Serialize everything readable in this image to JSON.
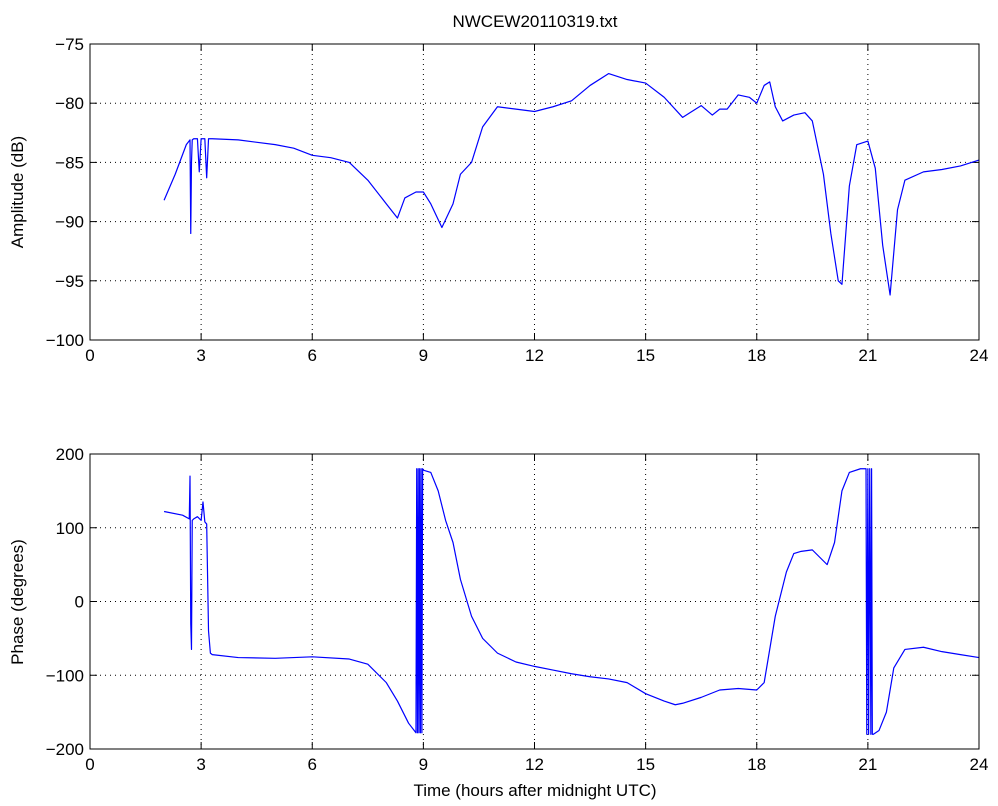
{
  "chart_data": [
    {
      "type": "line",
      "title": "NWCEW20110319.txt",
      "xlabel": "",
      "ylabel": "Amplitude (dB)",
      "xlim": [
        0,
        24
      ],
      "ylim": [
        -100,
        -75
      ],
      "xticks": [
        0,
        3,
        6,
        9,
        12,
        15,
        18,
        21,
        24
      ],
      "yticks": [
        -100,
        -95,
        -90,
        -85,
        -80,
        -75
      ],
      "xtick_labels": [
        "0",
        "3",
        "6",
        "9",
        "12",
        "15",
        "18",
        "21",
        "24"
      ],
      "ytick_labels": [
        "−100",
        "−95",
        "−90",
        "−85",
        "−80",
        "−75"
      ],
      "grid": true,
      "series_color": "#0000ff",
      "series": [
        {
          "x": [
            2.0,
            2.3,
            2.6,
            2.7,
            2.72,
            2.74,
            2.76,
            2.8,
            2.9,
            2.95,
            3.0,
            3.05,
            3.1,
            3.15,
            3.2,
            3.25,
            3.3,
            4.0,
            5.0,
            5.5,
            6.0,
            6.5,
            7.0,
            7.5,
            8.0,
            8.3,
            8.5,
            8.8,
            9.0,
            9.2,
            9.5,
            9.8,
            10.0,
            10.3,
            10.6,
            11.0,
            11.5,
            12.0,
            12.5,
            13.0,
            13.5,
            14.0,
            14.5,
            15.0,
            15.5,
            16.0,
            16.2,
            16.5,
            16.8,
            17.0,
            17.2,
            17.5,
            17.8,
            18.0,
            18.2,
            18.35,
            18.5,
            18.7,
            19.0,
            19.3,
            19.5,
            19.8,
            20.0,
            20.2,
            20.3,
            20.5,
            20.7,
            21.0,
            21.2,
            21.4,
            21.6,
            21.8,
            22.0,
            22.5,
            23.0,
            23.5,
            24.0
          ],
          "y": [
            -88.2,
            -86.0,
            -83.5,
            -83.1,
            -91.0,
            -85.0,
            -83.1,
            -83.0,
            -83.0,
            -85.8,
            -83.0,
            -83.0,
            -83.0,
            -86.3,
            -83.0,
            -83.0,
            -83.0,
            -83.1,
            -83.5,
            -83.8,
            -84.4,
            -84.6,
            -85.0,
            -86.5,
            -88.5,
            -89.7,
            -88.0,
            -87.5,
            -87.5,
            -88.5,
            -90.5,
            -88.5,
            -86.0,
            -85.0,
            -82.0,
            -80.3,
            -80.5,
            -80.7,
            -80.3,
            -79.8,
            -78.5,
            -77.5,
            -78.0,
            -78.3,
            -79.5,
            -81.2,
            -80.8,
            -80.2,
            -81.0,
            -80.5,
            -80.5,
            -79.3,
            -79.5,
            -80.0,
            -78.5,
            -78.2,
            -80.3,
            -81.5,
            -81.0,
            -80.8,
            -81.5,
            -86.0,
            -91.0,
            -95.0,
            -95.3,
            -87.0,
            -83.5,
            -83.2,
            -85.5,
            -92.0,
            -96.2,
            -89.0,
            -86.5,
            -85.8,
            -85.6,
            -85.3,
            -84.8
          ]
        }
      ]
    },
    {
      "type": "line",
      "title": "",
      "xlabel": "Time (hours after midnight UTC)",
      "ylabel": "Phase (degrees)",
      "xlim": [
        0,
        24
      ],
      "ylim": [
        -200,
        200
      ],
      "xticks": [
        0,
        3,
        6,
        9,
        12,
        15,
        18,
        21,
        24
      ],
      "yticks": [
        -200,
        -100,
        0,
        100,
        200
      ],
      "xtick_labels": [
        "0",
        "3",
        "6",
        "9",
        "12",
        "15",
        "18",
        "21",
        "24"
      ],
      "ytick_labels": [
        "−200",
        "−100",
        "0",
        "100",
        "200"
      ],
      "grid": true,
      "series_color": "#0000ff",
      "series": [
        {
          "x": [
            2.0,
            2.5,
            2.68,
            2.7,
            2.72,
            2.74,
            2.76,
            2.8,
            2.9,
            3.0,
            3.05,
            3.1,
            3.15,
            3.2,
            3.25,
            3.3,
            4.0,
            5.0,
            6.0,
            7.0,
            7.5,
            8.0,
            8.3,
            8.6,
            8.8,
            8.82,
            8.84,
            8.86,
            8.88,
            8.9,
            8.92,
            8.94,
            8.96,
            8.98,
            9.0,
            9.2,
            9.4,
            9.6,
            9.8,
            10.0,
            10.3,
            10.6,
            11.0,
            11.5,
            12.0,
            12.5,
            13.0,
            13.5,
            14.0,
            14.5,
            15.0,
            15.5,
            15.8,
            16.0,
            16.5,
            17.0,
            17.5,
            18.0,
            18.2,
            18.5,
            18.8,
            19.0,
            19.2,
            19.5,
            19.7,
            19.9,
            20.1,
            20.3,
            20.5,
            20.8,
            20.95,
            20.97,
            21.0,
            21.02,
            21.05,
            21.08,
            21.1,
            21.12,
            21.15,
            21.3,
            21.5,
            21.7,
            22.0,
            22.5,
            23.0,
            23.5,
            24.0
          ],
          "y": [
            122,
            117,
            112,
            170,
            -30,
            -65,
            110,
            112,
            115,
            110,
            135,
            108,
            105,
            -40,
            -70,
            -72,
            -76,
            -77,
            -75,
            -78,
            -85,
            -110,
            -135,
            -165,
            -178,
            180,
            -178,
            180,
            -178,
            180,
            -178,
            180,
            -178,
            180,
            178,
            175,
            150,
            110,
            80,
            30,
            -20,
            -50,
            -70,
            -82,
            -88,
            -93,
            -98,
            -102,
            -105,
            -110,
            -125,
            -135,
            -140,
            -138,
            -130,
            -120,
            -118,
            -120,
            -110,
            -20,
            40,
            65,
            68,
            70,
            60,
            50,
            80,
            150,
            175,
            180,
            180,
            -180,
            180,
            -180,
            180,
            -180,
            180,
            -180,
            -180,
            -175,
            -150,
            -90,
            -65,
            -62,
            -68,
            -72,
            -76
          ]
        }
      ]
    }
  ]
}
